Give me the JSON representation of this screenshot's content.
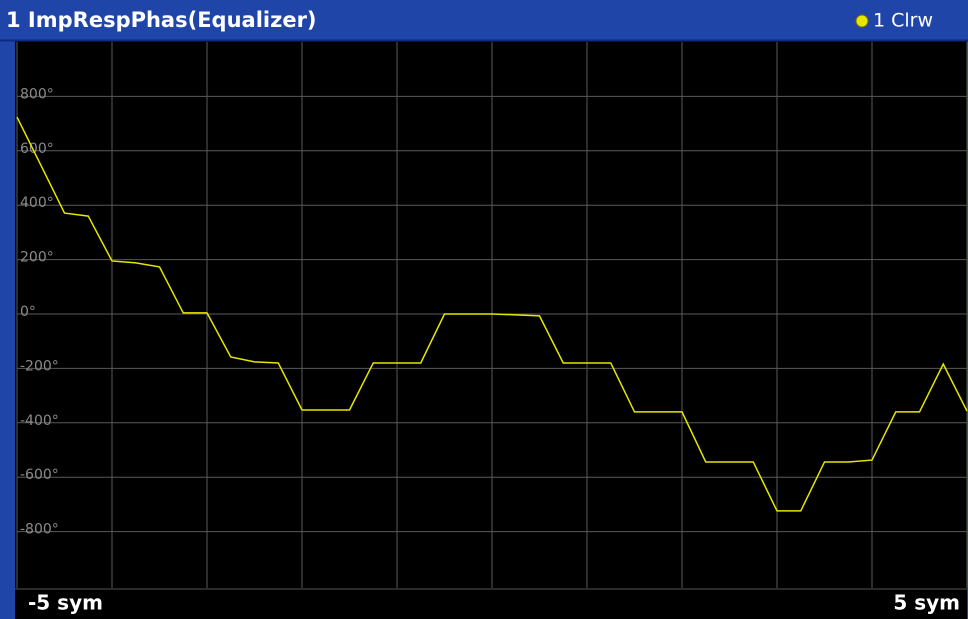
{
  "chart_data": {
    "type": "line",
    "title": "1 ImpRespPhas(Equalizer)",
    "x": [
      -5,
      -4.75,
      -4.5,
      -4.25,
      -4,
      -3.75,
      -3.5,
      -3.25,
      -3,
      -2.75,
      -2.5,
      -2.25,
      -2,
      -1.75,
      -1.5,
      -1.25,
      -1,
      -0.75,
      -0.5,
      -0.25,
      0,
      0.25,
      0.5,
      0.75,
      1,
      1.25,
      1.5,
      1.75,
      2,
      2.25,
      2.5,
      2.75,
      3,
      3.25,
      3.5,
      3.75,
      4,
      4.25,
      4.5,
      4.75,
      5
    ],
    "series": [
      {
        "name": "1 Clrw",
        "color": "#e6e600",
        "values": [
          724,
          548,
          371,
          360,
          195,
          188,
          173,
          4,
          4,
          -158,
          -176,
          -180,
          -353,
          -353,
          -353,
          -180,
          -180,
          -180,
          0,
          0,
          0,
          -3,
          -7,
          -180,
          -180,
          -180,
          -360,
          -360,
          -360,
          -544,
          -544,
          -544,
          -724,
          -724,
          -544,
          -544,
          -537,
          -360,
          -360,
          -184,
          -357
        ]
      }
    ],
    "xlim": [
      -5,
      5
    ],
    "xticks": [
      {
        "value": -5,
        "label": "-5 sym"
      },
      -4,
      -3,
      -2,
      -1,
      0,
      1,
      2,
      3,
      4,
      {
        "value": 5,
        "label": "5 sym"
      }
    ],
    "ylim": [
      -1000,
      1000
    ],
    "yticks": [
      {
        "value": 800,
        "label": "800°"
      },
      {
        "value": 600,
        "label": "600°"
      },
      {
        "value": 400,
        "label": "400°"
      },
      {
        "value": 200,
        "label": "200°"
      },
      {
        "value": 0,
        "label": "0°"
      },
      {
        "value": -200,
        "label": "-200°"
      },
      {
        "value": -400,
        "label": "-400°"
      },
      {
        "value": -600,
        "label": "-600°"
      },
      {
        "value": -800,
        "label": "-800°"
      }
    ],
    "grid": true
  }
}
